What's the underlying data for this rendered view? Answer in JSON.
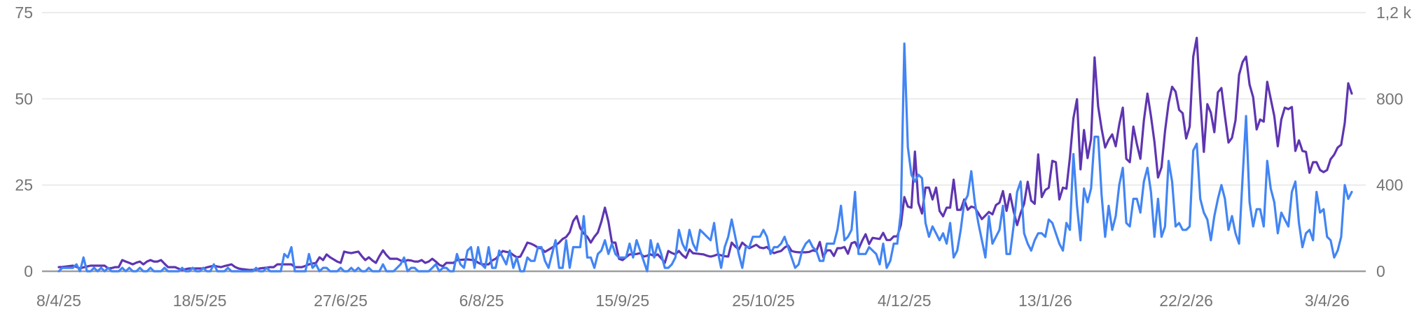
{
  "chart_data": {
    "type": "line",
    "title": "",
    "grid": true,
    "legend": "none",
    "x_tick_labels": [
      "8/4/25",
      "18/5/25",
      "27/6/25",
      "6/8/25",
      "15/9/25",
      "25/10/25",
      "4/12/25",
      "13/1/26",
      "22/2/26",
      "3/4/26"
    ],
    "y_left": {
      "lim": [
        0,
        75
      ],
      "ticks": [
        0,
        25,
        50,
        75
      ],
      "tick_labels": [
        "0",
        "25",
        "50",
        "75"
      ]
    },
    "y_right": {
      "lim": [
        0,
        1200
      ],
      "ticks": [
        0,
        400,
        800,
        1200
      ],
      "tick_labels": [
        "0",
        "400",
        "800",
        "1,2 k"
      ]
    },
    "x": [
      "8/4/25",
      "9/4/25",
      "10/4/25",
      "11/4/25",
      "12/4/25",
      "13/4/25",
      "14/4/25",
      "15/4/25",
      "16/4/25",
      "17/4/25",
      "18/4/25",
      "19/4/25",
      "20/4/25",
      "21/4/25",
      "22/4/25",
      "23/4/25",
      "24/4/25",
      "25/4/25",
      "26/4/25",
      "27/4/25",
      "28/4/25",
      "29/4/25",
      "30/4/25",
      "1/5/25",
      "2/5/25",
      "3/5/25",
      "4/5/25",
      "5/5/25",
      "6/5/25",
      "7/5/25",
      "8/5/25",
      "9/5/25",
      "10/5/25",
      "11/5/25",
      "12/5/25",
      "13/5/25",
      "14/5/25",
      "15/5/25",
      "16/5/25",
      "17/5/25",
      "18/5/25",
      "19/5/25",
      "20/5/25",
      "21/5/25",
      "22/5/25",
      "23/5/25",
      "24/5/25",
      "25/5/25",
      "26/5/25",
      "27/5/25",
      "28/5/25",
      "29/5/25",
      "30/5/25",
      "31/5/25",
      "1/6/25",
      "2/6/25",
      "3/6/25",
      "4/6/25",
      "5/6/25",
      "6/6/25",
      "7/6/25",
      "8/6/25",
      "9/6/25",
      "10/6/25",
      "11/6/25",
      "12/6/25",
      "13/6/25",
      "14/6/25",
      "15/6/25",
      "16/6/25",
      "17/6/25",
      "18/6/25",
      "19/6/25",
      "20/6/25",
      "21/6/25",
      "22/6/25",
      "23/6/25",
      "24/6/25",
      "25/6/25",
      "26/6/25",
      "27/6/25",
      "28/6/25",
      "29/6/25",
      "30/6/25",
      "1/7/25",
      "2/7/25",
      "3/7/25",
      "4/7/25",
      "5/7/25",
      "6/7/25",
      "7/7/25",
      "8/7/25",
      "9/7/25",
      "10/7/25",
      "11/7/25",
      "12/7/25",
      "13/7/25",
      "14/7/25",
      "15/7/25",
      "16/7/25",
      "17/7/25",
      "18/7/25",
      "19/7/25",
      "20/7/25",
      "21/7/25",
      "22/7/25",
      "23/7/25",
      "24/7/25",
      "25/7/25",
      "26/7/25",
      "27/7/25",
      "28/7/25",
      "29/7/25",
      "30/7/25",
      "31/7/25",
      "1/8/25",
      "2/8/25",
      "3/8/25",
      "4/8/25",
      "5/8/25",
      "6/8/25",
      "7/8/25",
      "8/8/25",
      "9/8/25",
      "10/8/25",
      "11/8/25",
      "12/8/25",
      "13/8/25",
      "14/8/25",
      "15/8/25",
      "16/8/25",
      "17/8/25",
      "18/8/25",
      "19/8/25",
      "20/8/25",
      "21/8/25",
      "22/8/25",
      "23/8/25",
      "24/8/25",
      "25/8/25",
      "26/8/25",
      "27/8/25",
      "28/8/25",
      "29/8/25",
      "30/8/25",
      "31/8/25",
      "1/9/25",
      "2/9/25",
      "3/9/25",
      "4/9/25",
      "5/9/25",
      "6/9/25",
      "7/9/25",
      "8/9/25",
      "9/9/25",
      "10/9/25",
      "11/9/25",
      "12/9/25",
      "13/9/25",
      "14/9/25",
      "15/9/25",
      "16/9/25",
      "17/9/25",
      "18/9/25",
      "19/9/25",
      "20/9/25",
      "21/9/25",
      "22/9/25",
      "23/9/25",
      "24/9/25",
      "25/9/25",
      "26/9/25",
      "27/9/25",
      "28/9/25",
      "29/9/25",
      "30/9/25",
      "1/10/25",
      "2/10/25",
      "3/10/25",
      "4/10/25",
      "5/10/25",
      "6/10/25",
      "7/10/25",
      "8/10/25",
      "9/10/25",
      "10/10/25",
      "11/10/25",
      "12/10/25",
      "13/10/25",
      "14/10/25",
      "15/10/25",
      "16/10/25",
      "17/10/25",
      "18/10/25",
      "19/10/25",
      "20/10/25",
      "21/10/25",
      "22/10/25",
      "23/10/25",
      "24/10/25",
      "25/10/25",
      "26/10/25",
      "27/10/25",
      "28/10/25",
      "29/10/25",
      "30/10/25",
      "31/10/25",
      "1/11/25",
      "2/11/25",
      "3/11/25",
      "4/11/25",
      "5/11/25",
      "6/11/25",
      "7/11/25",
      "8/11/25",
      "9/11/25",
      "10/11/25",
      "11/11/25",
      "12/11/25",
      "13/11/25",
      "14/11/25",
      "15/11/25",
      "16/11/25",
      "17/11/25",
      "18/11/25",
      "19/11/25",
      "20/11/25",
      "21/11/25",
      "22/11/25",
      "23/11/25",
      "24/11/25",
      "25/11/25",
      "26/11/25",
      "27/11/25",
      "28/11/25",
      "29/11/25",
      "30/11/25",
      "1/12/25",
      "2/12/25",
      "3/12/25",
      "4/12/25",
      "5/12/25",
      "6/12/25",
      "7/12/25",
      "8/12/25",
      "9/12/25",
      "10/12/25",
      "11/12/25",
      "12/12/25",
      "13/12/25",
      "14/12/25",
      "15/12/25",
      "16/12/25",
      "17/12/25",
      "18/12/25",
      "19/12/25",
      "20/12/25",
      "21/12/25",
      "22/12/25",
      "23/12/25",
      "24/12/25",
      "25/12/25",
      "26/12/25",
      "27/12/25",
      "28/12/25",
      "29/12/25",
      "30/12/25",
      "31/12/25",
      "1/1/26",
      "2/1/26",
      "3/1/26",
      "4/1/26",
      "5/1/26",
      "6/1/26",
      "7/1/26",
      "8/1/26",
      "9/1/26",
      "10/1/26",
      "11/1/26",
      "12/1/26",
      "13/1/26",
      "14/1/26",
      "15/1/26",
      "16/1/26",
      "17/1/26",
      "18/1/26",
      "19/1/26",
      "20/1/26",
      "21/1/26",
      "22/1/26",
      "23/1/26",
      "24/1/26",
      "25/1/26",
      "26/1/26",
      "27/1/26",
      "28/1/26",
      "29/1/26",
      "30/1/26",
      "31/1/26",
      "1/2/26",
      "2/2/26",
      "3/2/26",
      "4/2/26",
      "5/2/26",
      "6/2/26",
      "7/2/26",
      "8/2/26",
      "9/2/26",
      "10/2/26",
      "11/2/26",
      "12/2/26",
      "13/2/26",
      "14/2/26",
      "15/2/26",
      "16/2/26",
      "17/2/26",
      "18/2/26",
      "19/2/26",
      "20/2/26",
      "21/2/26",
      "22/2/26",
      "23/2/26",
      "24/2/26",
      "25/2/26",
      "26/2/26",
      "27/2/26",
      "28/2/26",
      "1/3/26",
      "2/3/26",
      "3/3/26",
      "4/3/26",
      "5/3/26",
      "6/3/26",
      "7/3/26",
      "8/3/26",
      "9/3/26",
      "10/3/26",
      "11/3/26",
      "12/3/26",
      "13/3/26",
      "14/3/26",
      "15/3/26",
      "16/3/26",
      "17/3/26",
      "18/3/26",
      "19/3/26",
      "20/3/26",
      "21/3/26",
      "22/3/26",
      "23/3/26",
      "24/3/26",
      "25/3/26",
      "26/3/26",
      "27/3/26",
      "28/3/26",
      "29/3/26",
      "30/3/26",
      "31/3/26",
      "1/4/26",
      "2/4/26",
      "3/4/26",
      "4/4/26",
      "5/4/26",
      "6/4/26",
      "7/4/26",
      "8/4/26",
      "9/4/26",
      "10/4/26"
    ],
    "series": [
      {
        "axis": "right",
        "color": "#5e35b1",
        "values": [
          19,
          20,
          22,
          24,
          26,
          20,
          13,
          18,
          22,
          26,
          26,
          26,
          26,
          26,
          13,
          15,
          19,
          19,
          52,
          45,
          39,
          32,
          40,
          45,
          32,
          45,
          52,
          45,
          45,
          52,
          35,
          19,
          19,
          19,
          12,
          6,
          10,
          13,
          13,
          13,
          13,
          13,
          18,
          22,
          26,
          22,
          19,
          24,
          28,
          32,
          20,
          13,
          10,
          8,
          6,
          6,
          8,
          13,
          15,
          17,
          19,
          19,
          32,
          32,
          32,
          32,
          32,
          19,
          19,
          19,
          25,
          32,
          36,
          39,
          65,
          52,
          78,
          65,
          55,
          45,
          39,
          91,
          87,
          84,
          88,
          91,
          70,
          52,
          65,
          50,
          39,
          70,
          97,
          75,
          58,
          58,
          58,
          50,
          45,
          52,
          50,
          45,
          45,
          52,
          39,
          45,
          58,
          45,
          30,
          23,
          39,
          39,
          39,
          52,
          53,
          54,
          55,
          53,
          52,
          40,
          32,
          32,
          32,
          50,
          58,
          75,
          94,
          90,
          88,
          75,
          65,
          68,
          100,
          133,
          128,
          120,
          110,
          105,
          90,
          100,
          110,
          120,
          133,
          150,
          159,
          181,
          233,
          256,
          200,
          175,
          160,
          133,
          160,
          180,
          230,
          295,
          230,
          133,
          133,
          58,
          52,
          65,
          78,
          78,
          80,
          84,
          68,
          72,
          78,
          71,
          78,
          60,
          39,
          94,
          85,
          78,
          94,
          75,
          62,
          101,
          84,
          82,
          80,
          78,
          72,
          68,
          72,
          78,
          74,
          70,
          68,
          133,
          115,
          101,
          133,
          118,
          107,
          115,
          123,
          110,
          107,
          113,
          95,
          84,
          90,
          94,
          110,
          120,
          94,
          90,
          88,
          88,
          88,
          90,
          97,
          93,
          136,
          65,
          97,
          97,
          71,
          107,
          107,
          113,
          81,
          130,
          136,
          103,
          140,
          172,
          126,
          155,
          152,
          150,
          178,
          145,
          145,
          162,
          162,
          214,
          344,
          300,
          295,
          555,
          317,
          268,
          388,
          388,
          333,
          388,
          280,
          255,
          295,
          295,
          425,
          285,
          285,
          333,
          285,
          300,
          295,
          270,
          242,
          258,
          275,
          264,
          307,
          318,
          372,
          280,
          358,
          280,
          214,
          270,
          313,
          415,
          328,
          313,
          542,
          344,
          377,
          388,
          512,
          506,
          333,
          388,
          383,
          528,
          710,
          798,
          473,
          655,
          525,
          613,
          992,
          765,
          660,
          574,
          610,
          635,
          580,
          680,
          759,
          522,
          506,
          671,
          590,
          522,
          700,
          824,
          720,
          600,
          435,
          483,
          650,
          780,
          856,
          833,
          749,
          733,
          616,
          671,
          996,
          1083,
          800,
          554,
          775,
          736,
          645,
          830,
          850,
          720,
          597,
          619,
          700,
          911,
          970,
          996,
          866,
          808,
          658,
          704,
          694,
          879,
          800,
          720,
          580,
          704,
          759,
          752,
          762,
          558,
          607,
          558,
          554,
          457,
          506,
          506,
          470,
          460,
          470,
          520,
          541,
          574,
          587,
          688,
          872,
          824
        ]
      },
      {
        "axis": "left",
        "color": "#4285f4",
        "values": [
          0,
          1,
          1,
          1,
          1,
          2,
          0,
          4,
          0,
          0,
          1,
          0,
          1,
          0,
          1,
          0,
          0,
          0,
          1,
          0,
          1,
          0,
          0,
          1,
          0,
          0,
          1,
          0,
          0,
          0,
          1,
          0,
          0,
          0,
          0,
          1,
          0,
          0,
          1,
          0,
          0,
          1,
          0,
          0,
          2,
          0,
          0,
          0,
          1,
          0,
          0,
          0,
          0,
          0,
          0,
          0,
          1,
          0,
          0,
          1,
          0,
          0,
          0,
          0,
          5,
          4,
          7,
          0,
          0,
          0,
          0,
          5,
          1,
          2,
          0,
          1,
          1,
          0,
          0,
          0,
          1,
          0,
          0,
          1,
          0,
          1,
          0,
          0,
          1,
          0,
          0,
          0,
          2,
          0,
          0,
          0,
          1,
          2,
          4,
          0,
          1,
          1,
          0,
          0,
          0,
          0,
          1,
          2,
          0,
          1,
          1,
          0,
          0,
          5,
          2,
          1,
          6,
          7,
          1,
          7,
          2,
          1,
          7,
          1,
          1,
          6,
          4,
          2,
          6,
          1,
          4,
          0,
          0,
          4,
          3,
          3,
          7,
          7,
          3,
          1,
          5,
          9,
          1,
          1,
          9,
          1,
          7,
          7,
          7,
          16,
          4,
          4,
          1,
          5,
          6,
          9,
          5,
          8,
          5,
          4,
          4,
          4,
          8,
          4,
          9,
          6,
          3,
          0,
          9,
          4,
          8,
          5,
          1,
          1,
          2,
          4,
          12,
          8,
          6,
          12,
          8,
          6,
          12,
          11,
          10,
          9,
          14,
          6,
          1,
          7,
          10,
          15,
          10,
          5,
          1,
          7,
          7,
          10,
          10,
          10,
          12,
          10,
          5,
          7,
          7,
          8,
          10,
          7,
          4,
          1,
          2,
          6,
          8,
          9,
          7,
          6,
          3,
          3,
          8,
          8,
          8,
          12,
          19,
          9,
          10,
          12,
          23,
          5,
          5,
          5,
          7,
          6,
          5,
          2,
          8,
          1,
          3,
          8,
          8,
          17,
          66,
          36,
          28,
          26,
          28,
          27,
          14,
          10,
          13,
          11,
          9,
          11,
          8,
          14,
          4,
          6,
          12,
          20,
          22,
          29,
          20,
          14,
          9,
          4,
          16,
          8,
          10,
          12,
          19,
          5,
          5,
          13,
          23,
          26,
          11,
          8,
          6,
          9,
          11,
          11,
          10,
          15,
          14,
          11,
          8,
          6,
          14,
          12,
          34,
          19,
          9,
          24,
          20,
          24,
          39,
          39,
          22,
          10,
          19,
          12,
          16,
          25,
          30,
          14,
          13,
          21,
          21,
          17,
          26,
          30,
          23,
          10,
          21,
          10,
          13,
          32,
          26,
          13,
          14,
          12,
          12,
          13,
          35,
          37,
          21,
          17,
          15,
          9,
          16,
          21,
          25,
          21,
          12,
          16,
          11,
          8,
          27,
          45,
          20,
          13,
          18,
          18,
          13,
          32,
          24,
          20,
          11,
          17,
          15,
          13,
          23,
          26,
          14,
          7,
          11,
          12,
          9,
          23,
          17,
          18,
          10,
          9,
          4,
          6,
          10,
          25,
          21,
          23
        ]
      }
    ]
  }
}
